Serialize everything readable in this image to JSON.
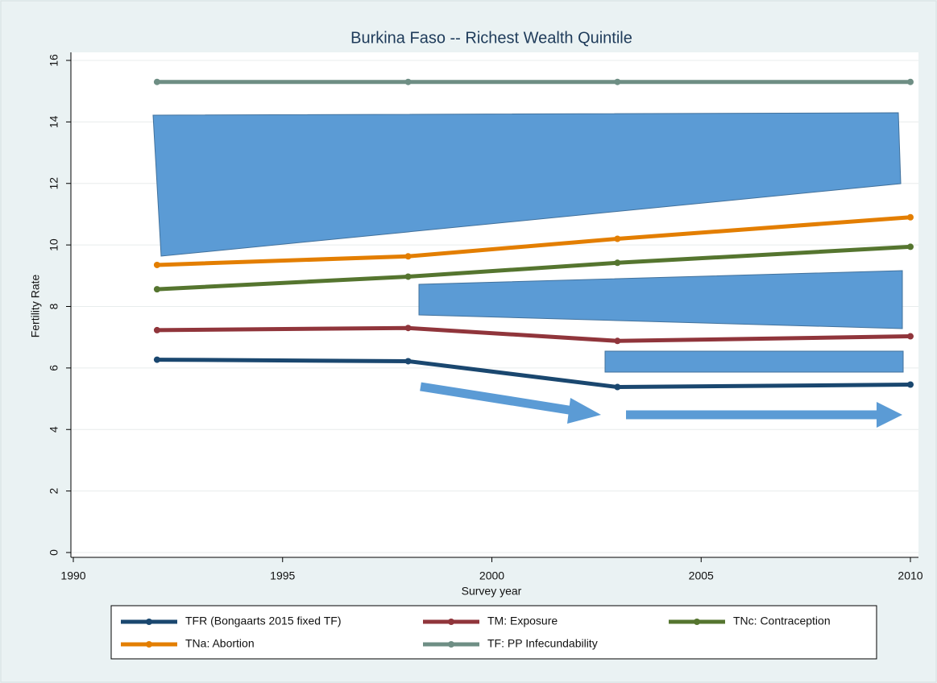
{
  "chart_data": {
    "type": "line",
    "title": "Burkina Faso -- Richest Wealth Quintile",
    "x_label": "Survey year",
    "y_label": "Fertility Rate",
    "x": [
      1992,
      1998,
      2003,
      2010
    ],
    "series": [
      {
        "name": "TFR (Bongaarts 2015 fixed TF)",
        "color": "#1a476f",
        "values": [
          6.27,
          6.22,
          5.38,
          5.46
        ]
      },
      {
        "name": "TM: Exposure",
        "color": "#90353b",
        "values": [
          7.23,
          7.3,
          6.88,
          7.03
        ]
      },
      {
        "name": "TNc: Contraception",
        "color": "#55752f",
        "values": [
          8.56,
          8.97,
          9.42,
          9.94
        ]
      },
      {
        "name": "TNa: Abortion",
        "color": "#e37e00",
        "values": [
          9.35,
          9.63,
          10.2,
          10.9
        ]
      },
      {
        "name": "TF: PP Infecundability",
        "color": "#6e8e84",
        "values": [
          15.3,
          15.3,
          15.3,
          15.3
        ]
      }
    ],
    "xlim": [
      1990,
      2010
    ],
    "xticks": [
      1990,
      1995,
      2000,
      2005,
      2010
    ],
    "ylim": [
      0,
      16
    ],
    "yticks": [
      0,
      2,
      4,
      6,
      8,
      10,
      12,
      14,
      16
    ],
    "grid": true
  }
}
